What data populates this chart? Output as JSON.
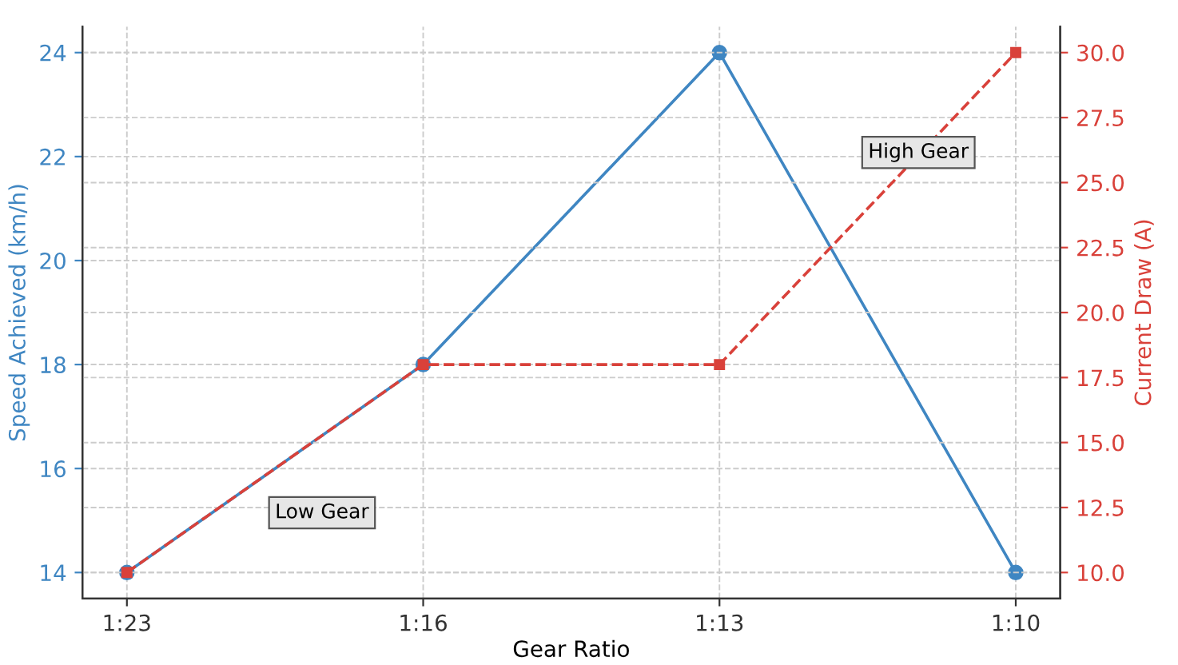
{
  "chart_data": {
    "type": "line",
    "xlabel": "Gear Ratio",
    "ylabel": "Speed Achieved (km/h)",
    "y2label": "Current Draw (A)",
    "categories": [
      "1:23",
      "1:16",
      "1:13",
      "1:10"
    ],
    "series": [
      {
        "color": "#3f86c2",
        "values": [
          14,
          18,
          24,
          14
        ],
        "marker": "circle",
        "line_style": "solid"
      },
      {
        "color": "#d9413a",
        "values": [
          10,
          18,
          18,
          30
        ],
        "marker": "square",
        "line_style": "dashed",
        "axis": "y2"
      }
    ],
    "ylim": [
      13.5,
      24.5
    ],
    "yticks": [
      14,
      16,
      18,
      20,
      22,
      24
    ],
    "y2lim": [
      9,
      31
    ],
    "y2ticks": [
      {
        "value": 10,
        "label": "10.0"
      },
      12.5,
      {
        "value": 15,
        "label": "15.0"
      },
      17.5,
      {
        "value": 20,
        "label": "20.0"
      },
      22.5,
      {
        "value": 25,
        "label": "25.0"
      },
      27.5,
      {
        "value": 30,
        "label": "30.0"
      }
    ],
    "annotations": [
      "Low Gear",
      "High Gear"
    ],
    "grid": true,
    "legend": false
  }
}
